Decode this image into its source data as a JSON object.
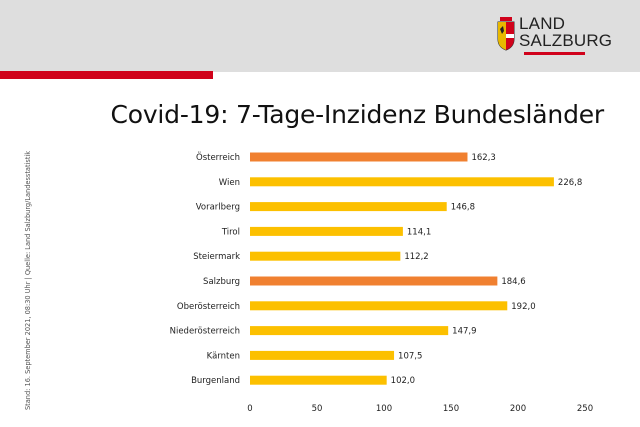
{
  "header": {
    "logo_line1": "LAND",
    "logo_line2": "SALZBURG"
  },
  "page_title": "Covid-19: 7-Tage-Inzidenz Bundesländer",
  "side_note": "Stand: 16. September 2021, 08:30 Uhr | Quelle: Land Salzburg/Landesstatistik",
  "colors": {
    "accent_red": "#d0021b",
    "bar_orange": "#f08030",
    "bar_yellow": "#fcc000"
  },
  "chart_data": {
    "type": "bar",
    "orientation": "horizontal",
    "categories": [
      "Österreich",
      "Wien",
      "Vorarlberg",
      "Tirol",
      "Steiermark",
      "Salzburg",
      "Oberösterreich",
      "Niederösterreich",
      "Kärnten",
      "Burgenland"
    ],
    "values": [
      162.3,
      226.8,
      146.8,
      114.1,
      112.2,
      184.6,
      192.0,
      147.9,
      107.5,
      102.0
    ],
    "value_labels": [
      "162,3",
      "226,8",
      "146,8",
      "114,1",
      "112,2",
      "184,6",
      "192,0",
      "147,9",
      "107,5",
      "102,0"
    ],
    "highlight": [
      "Österreich",
      "Salzburg"
    ],
    "xlim": [
      0,
      250
    ],
    "xticks": [
      0,
      50,
      100,
      150,
      200,
      250
    ],
    "title": "",
    "xlabel": "",
    "ylabel": "",
    "grid": false,
    "legend": "none"
  }
}
